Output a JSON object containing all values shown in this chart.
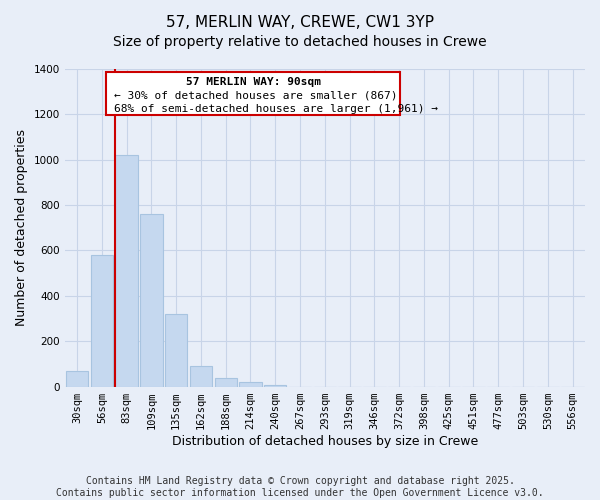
{
  "title": "57, MERLIN WAY, CREWE, CW1 3YP",
  "subtitle": "Size of property relative to detached houses in Crewe",
  "xlabel": "Distribution of detached houses by size in Crewe",
  "ylabel": "Number of detached properties",
  "bar_labels": [
    "30sqm",
    "56sqm",
    "83sqm",
    "109sqm",
    "135sqm",
    "162sqm",
    "188sqm",
    "214sqm",
    "240sqm",
    "267sqm",
    "293sqm",
    "319sqm",
    "346sqm",
    "372sqm",
    "398sqm",
    "425sqm",
    "451sqm",
    "477sqm",
    "503sqm",
    "530sqm",
    "556sqm"
  ],
  "bar_values": [
    67,
    580,
    1020,
    760,
    320,
    90,
    40,
    20,
    5,
    0,
    0,
    0,
    0,
    0,
    0,
    0,
    0,
    0,
    0,
    0,
    0
  ],
  "bar_color": "#c5d8ef",
  "bar_edge_color": "#a8c4e0",
  "vline_x_idx": 2,
  "vline_color": "#cc0000",
  "ylim": [
    0,
    1400
  ],
  "yticks": [
    0,
    200,
    400,
    600,
    800,
    1000,
    1200,
    1400
  ],
  "annotation_title": "57 MERLIN WAY: 90sqm",
  "annotation_line1": "← 30% of detached houses are smaller (867)",
  "annotation_line2": "68% of semi-detached houses are larger (1,961) →",
  "footnote1": "Contains HM Land Registry data © Crown copyright and database right 2025.",
  "footnote2": "Contains public sector information licensed under the Open Government Licence v3.0.",
  "background_color": "#e8eef8",
  "grid_color": "#c8d4e8",
  "box_color": "#cc0000",
  "title_fontsize": 11,
  "subtitle_fontsize": 10,
  "axis_fontsize": 9,
  "tick_fontsize": 7.5,
  "annotation_fontsize": 8,
  "footnote_fontsize": 7
}
